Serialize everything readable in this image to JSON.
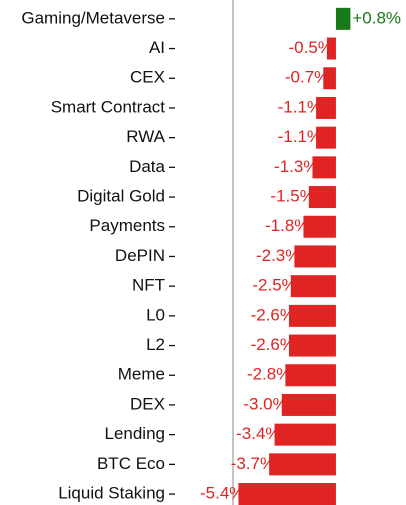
{
  "chart_data": {
    "type": "barh",
    "categories": [
      "Gaming/Metaverse",
      "AI",
      "CEX",
      "Smart Contract",
      "RWA",
      "Data",
      "Digital Gold",
      "Payments",
      "DePIN",
      "NFT",
      "L0",
      "L2",
      "Meme",
      "DEX",
      "Lending",
      "BTC Eco",
      "Liquid Staking"
    ],
    "values": [
      0.8,
      -0.5,
      -0.7,
      -1.1,
      -1.1,
      -1.3,
      -1.5,
      -1.8,
      -2.3,
      -2.5,
      -2.6,
      -2.6,
      -2.8,
      -3.0,
      -3.4,
      -3.7,
      -5.4
    ],
    "value_labels": [
      "+0.8%",
      "-0.5%",
      "-0.7%",
      "-1.1%",
      "-1.1%",
      "-1.3%",
      "-1.5%",
      "-1.8%",
      "-2.3%",
      "-2.5%",
      "-2.6%",
      "-2.6%",
      "-2.8%",
      "-3.0%",
      "-3.4%",
      "-3.7%",
      "-5.4%"
    ],
    "positive_color": "#177a17",
    "negative_color": "#e02424",
    "xlim": [
      -5.7,
      1.0
    ]
  }
}
